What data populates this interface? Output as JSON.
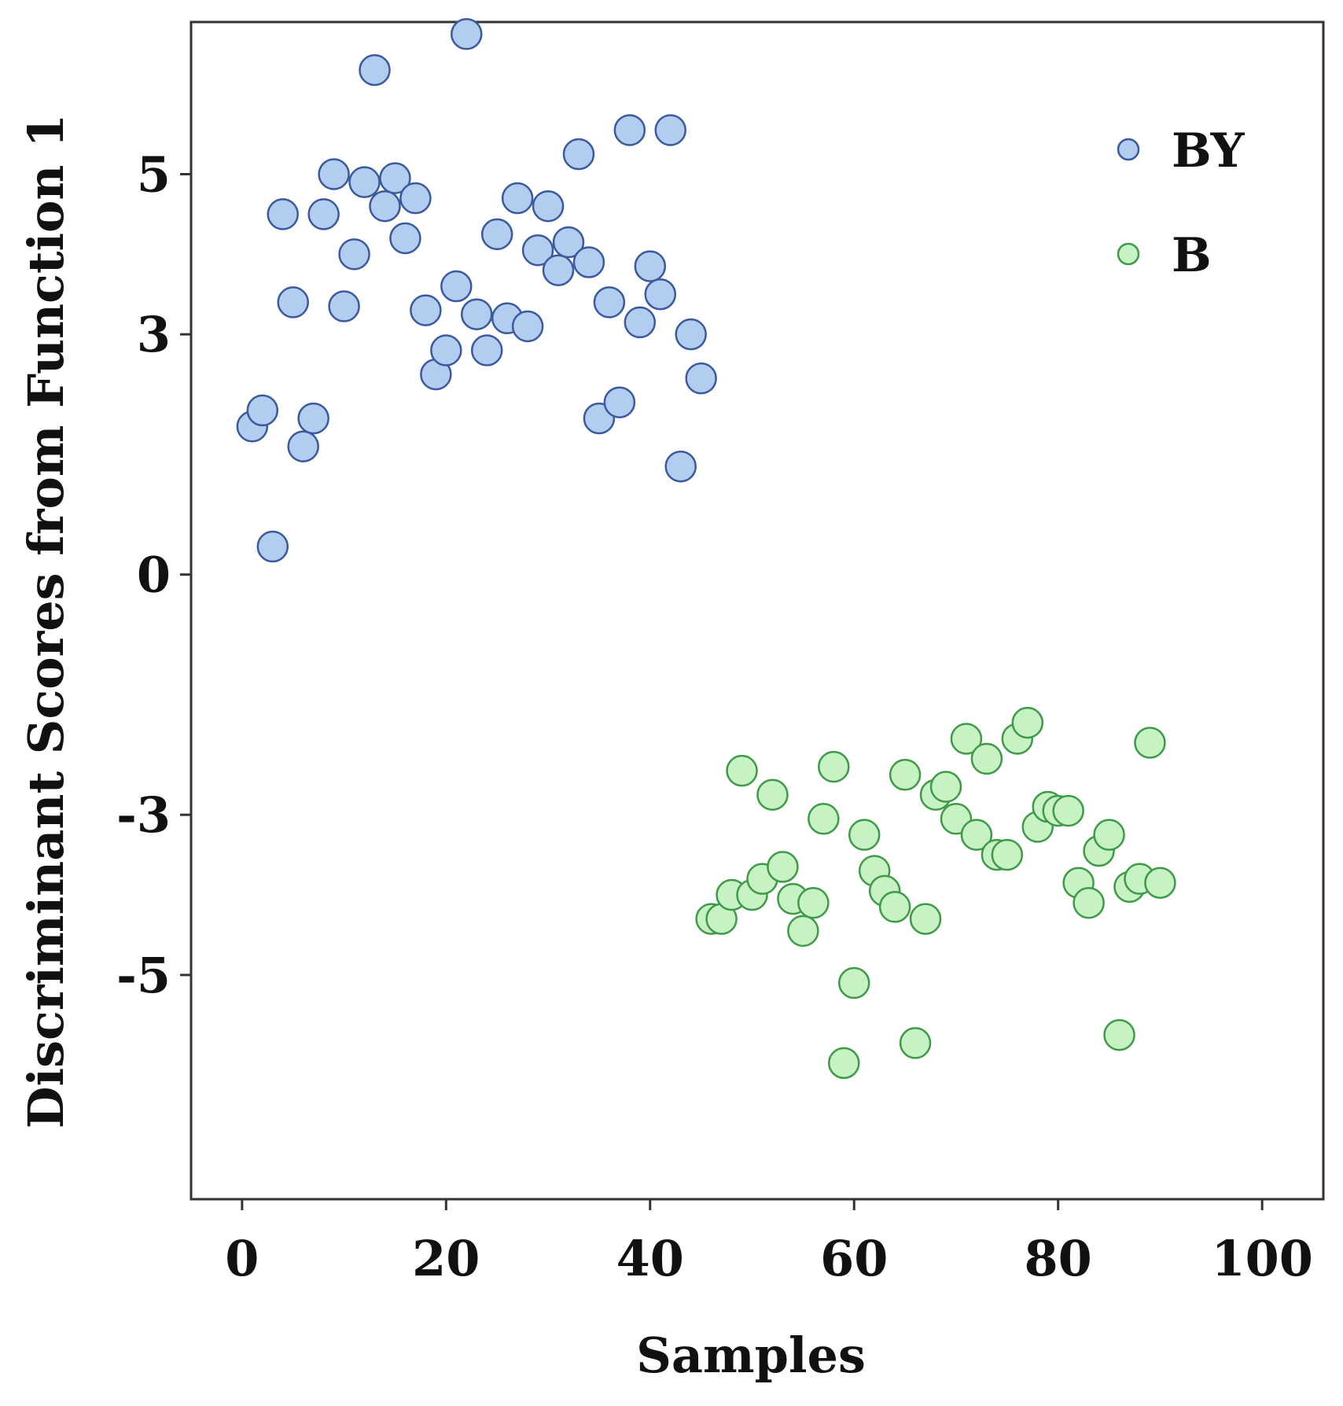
{
  "chart_data": {
    "type": "scatter",
    "xlabel": "Samples",
    "ylabel": "Discriminant Scores from Function 1",
    "xlim": [
      -5,
      106
    ],
    "ylim": [
      -7.8,
      6.9
    ],
    "xticks": [
      0,
      20,
      40,
      60,
      80,
      100
    ],
    "xtick_labels": [
      "0",
      "20",
      "40",
      "60",
      "80",
      "100"
    ],
    "yticks": [
      5,
      3,
      0,
      -3,
      -5
    ],
    "ytick_labels": [
      "5",
      "3",
      "0",
      "-3",
      "-5"
    ],
    "grid": false,
    "legend_position": "top-right",
    "series": [
      {
        "name": "BY",
        "fill": "#b3cdf0",
        "stroke": "#3b5a9d",
        "points": [
          [
            1,
            1.85
          ],
          [
            2,
            2.05
          ],
          [
            3,
            0.35
          ],
          [
            4,
            4.5
          ],
          [
            5,
            3.4
          ],
          [
            6,
            1.6
          ],
          [
            7,
            1.95
          ],
          [
            8,
            4.5
          ],
          [
            9,
            5.0
          ],
          [
            10,
            3.35
          ],
          [
            11,
            4.0
          ],
          [
            12,
            4.9
          ],
          [
            13,
            6.3
          ],
          [
            14,
            4.6
          ],
          [
            15,
            4.95
          ],
          [
            16,
            4.2
          ],
          [
            17,
            4.7
          ],
          [
            18,
            3.3
          ],
          [
            19,
            2.5
          ],
          [
            20,
            2.8
          ],
          [
            21,
            3.6
          ],
          [
            22,
            6.75
          ],
          [
            23,
            3.25
          ],
          [
            24,
            2.8
          ],
          [
            25,
            4.25
          ],
          [
            26,
            3.2
          ],
          [
            27,
            4.7
          ],
          [
            28,
            3.1
          ],
          [
            29,
            4.05
          ],
          [
            30,
            4.6
          ],
          [
            31,
            3.8
          ],
          [
            32,
            4.15
          ],
          [
            33,
            5.25
          ],
          [
            34,
            3.9
          ],
          [
            35,
            1.95
          ],
          [
            36,
            3.4
          ],
          [
            37,
            2.15
          ],
          [
            38,
            5.55
          ],
          [
            39,
            3.15
          ],
          [
            40,
            3.85
          ],
          [
            41,
            3.5
          ],
          [
            42,
            5.55
          ],
          [
            43,
            1.35
          ],
          [
            44,
            3.0
          ],
          [
            45,
            2.45
          ]
        ]
      },
      {
        "name": "B",
        "fill": "#c6f2c4",
        "stroke": "#3f9a48",
        "points": [
          [
            46,
            -4.3
          ],
          [
            47,
            -4.3
          ],
          [
            48,
            -4.0
          ],
          [
            49,
            -2.45
          ],
          [
            50,
            -4.0
          ],
          [
            51,
            -3.8
          ],
          [
            52,
            -2.75
          ],
          [
            53,
            -3.65
          ],
          [
            54,
            -4.05
          ],
          [
            55,
            -4.45
          ],
          [
            56,
            -4.1
          ],
          [
            57,
            -3.05
          ],
          [
            58,
            -2.4
          ],
          [
            59,
            -6.1
          ],
          [
            60,
            -5.1
          ],
          [
            61,
            -3.25
          ],
          [
            62,
            -3.7
          ],
          [
            63,
            -3.95
          ],
          [
            64,
            -4.15
          ],
          [
            65,
            -2.5
          ],
          [
            66,
            -5.85
          ],
          [
            67,
            -4.3
          ],
          [
            68,
            -2.75
          ],
          [
            69,
            -2.65
          ],
          [
            70,
            -3.05
          ],
          [
            71,
            -2.05
          ],
          [
            72,
            -3.25
          ],
          [
            73,
            -2.3
          ],
          [
            74,
            -3.5
          ],
          [
            75,
            -3.5
          ],
          [
            76,
            -2.05
          ],
          [
            77,
            -1.85
          ],
          [
            78,
            -3.15
          ],
          [
            79,
            -2.9
          ],
          [
            80,
            -2.95
          ],
          [
            81,
            -2.95
          ],
          [
            82,
            -3.85
          ],
          [
            83,
            -4.1
          ],
          [
            84,
            -3.45
          ],
          [
            85,
            -3.25
          ],
          [
            86,
            -5.75
          ],
          [
            87,
            -3.9
          ],
          [
            88,
            -3.8
          ],
          [
            89,
            -2.1
          ],
          [
            90,
            -3.85
          ]
        ]
      }
    ]
  }
}
